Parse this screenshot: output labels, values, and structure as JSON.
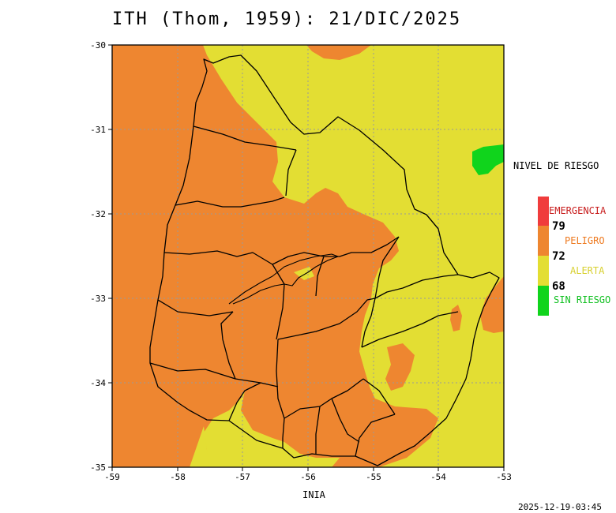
{
  "title": "ITH (Thom, 1959): 21/DIC/2025",
  "credit": "INIA",
  "timestamp": "2025-12-19-03:45",
  "axes": {
    "x_ticks": [
      "-59",
      "-58",
      "-57",
      "-56",
      "-55",
      "-54",
      "-53"
    ],
    "y_ticks": [
      "-30",
      "-31",
      "-32",
      "-33",
      "-34",
      "-35"
    ],
    "x_range": [
      -59,
      -53
    ],
    "y_range": [
      -35,
      -30
    ]
  },
  "legend": {
    "title": "NIVEL DE RIESGO",
    "levels": [
      {
        "label": "EMERGENCIA",
        "color": "#f03c3c",
        "text_color": "#c81e1e"
      },
      {
        "label": "PELIGRO",
        "color": "#ee8630",
        "text_color": "#ee7a20"
      },
      {
        "label": "ALERTA",
        "color": "#e3de33",
        "text_color": "#d8d030"
      },
      {
        "label": "SIN RIESGO",
        "color": "#10d41c",
        "text_color": "#10c020"
      }
    ],
    "thresholds": [
      "79",
      "72",
      "68"
    ]
  },
  "colors": {
    "peligro": "#ee8630",
    "alerta": "#e3de33",
    "sin_riesgo": "#10d41c",
    "grid": "#9a9a9a",
    "border": "#000000"
  },
  "icons": [
    "map-of-uruguay"
  ]
}
